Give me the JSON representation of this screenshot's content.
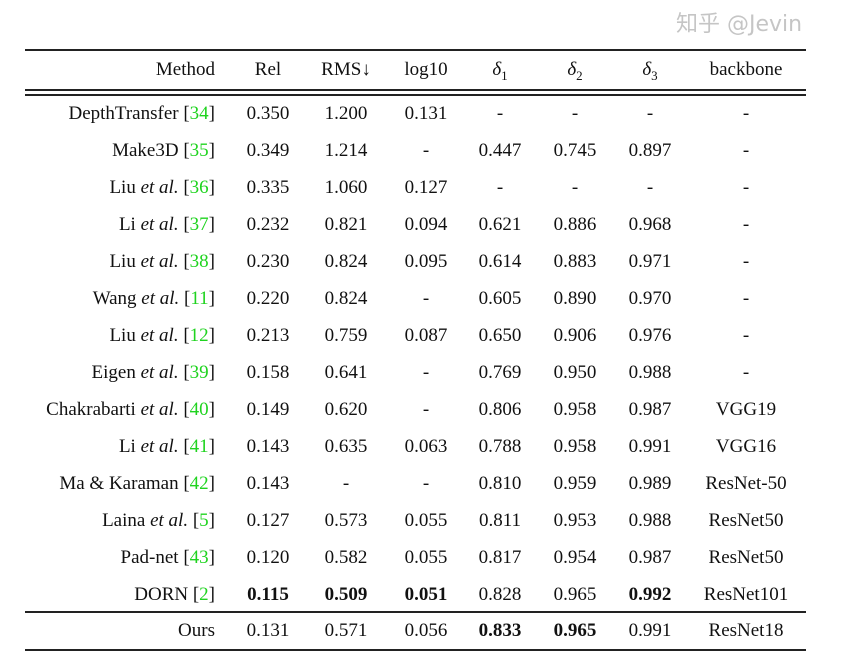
{
  "table": {
    "headers": [
      "Method",
      "Rel",
      "RMS↓",
      "log10",
      "δ1",
      "δ2",
      "δ3",
      "backbone"
    ],
    "rows": [
      {
        "method": "DepthTransfer",
        "etal": false,
        "cite": "34",
        "values": [
          "0.350",
          "1.200",
          "0.131",
          "-",
          "-",
          "-",
          "-"
        ],
        "bold": []
      },
      {
        "method": "Make3D",
        "etal": false,
        "cite": "35",
        "values": [
          "0.349",
          "1.214",
          "-",
          "0.447",
          "0.745",
          "0.897",
          "-"
        ],
        "bold": []
      },
      {
        "method": "Liu",
        "etal": true,
        "cite": "36",
        "values": [
          "0.335",
          "1.060",
          "0.127",
          "-",
          "-",
          "-",
          "-"
        ],
        "bold": []
      },
      {
        "method": "Li",
        "etal": true,
        "cite": "37",
        "values": [
          "0.232",
          "0.821",
          "0.094",
          "0.621",
          "0.886",
          "0.968",
          "-"
        ],
        "bold": []
      },
      {
        "method": "Liu",
        "etal": true,
        "cite": "38",
        "values": [
          "0.230",
          "0.824",
          "0.095",
          "0.614",
          "0.883",
          "0.971",
          "-"
        ],
        "bold": []
      },
      {
        "method": "Wang",
        "etal": true,
        "cite": "11",
        "values": [
          "0.220",
          "0.824",
          "-",
          "0.605",
          "0.890",
          "0.970",
          "-"
        ],
        "bold": []
      },
      {
        "method": "Liu",
        "etal": true,
        "cite": "12",
        "values": [
          "0.213",
          "0.759",
          "0.087",
          "0.650",
          "0.906",
          "0.976",
          "-"
        ],
        "bold": []
      },
      {
        "method": "Eigen",
        "etal": true,
        "cite": "39",
        "values": [
          "0.158",
          "0.641",
          "-",
          "0.769",
          "0.950",
          "0.988",
          "-"
        ],
        "bold": []
      },
      {
        "method": "Chakrabarti",
        "etal": true,
        "cite": "40",
        "values": [
          "0.149",
          "0.620",
          "-",
          "0.806",
          "0.958",
          "0.987",
          "VGG19"
        ],
        "bold": []
      },
      {
        "method": "Li",
        "etal": true,
        "cite": "41",
        "values": [
          "0.143",
          "0.635",
          "0.063",
          "0.788",
          "0.958",
          "0.991",
          "VGG16"
        ],
        "bold": []
      },
      {
        "method": "Ma & Karaman",
        "etal": false,
        "cite": "42",
        "values": [
          "0.143",
          "-",
          "-",
          "0.810",
          "0.959",
          "0.989",
          "ResNet-50"
        ],
        "bold": []
      },
      {
        "method": "Laina",
        "etal": true,
        "cite": "5",
        "values": [
          "0.127",
          "0.573",
          "0.055",
          "0.811",
          "0.953",
          "0.988",
          "ResNet50"
        ],
        "bold": []
      },
      {
        "method": "Pad-net",
        "etal": false,
        "cite": "43",
        "values": [
          "0.120",
          "0.582",
          "0.055",
          "0.817",
          "0.954",
          "0.987",
          "ResNet50"
        ],
        "bold": []
      },
      {
        "method": "DORN ",
        "etal": false,
        "cite": "2",
        "values": [
          "0.115",
          "0.509",
          "0.051",
          "0.828",
          "0.965",
          "0.992",
          "ResNet101"
        ],
        "bold": [
          0,
          1,
          2,
          5
        ]
      },
      {
        "method": "Ours",
        "etal": false,
        "cite": "",
        "values": [
          "0.131",
          "0.571",
          "0.056",
          "0.833",
          "0.965",
          "0.991",
          "ResNet18"
        ],
        "bold": [
          3,
          4
        ]
      }
    ],
    "etal_text": "et al.",
    "cite_color": "#1fd31f"
  },
  "watermark": "知乎 @Jevin"
}
